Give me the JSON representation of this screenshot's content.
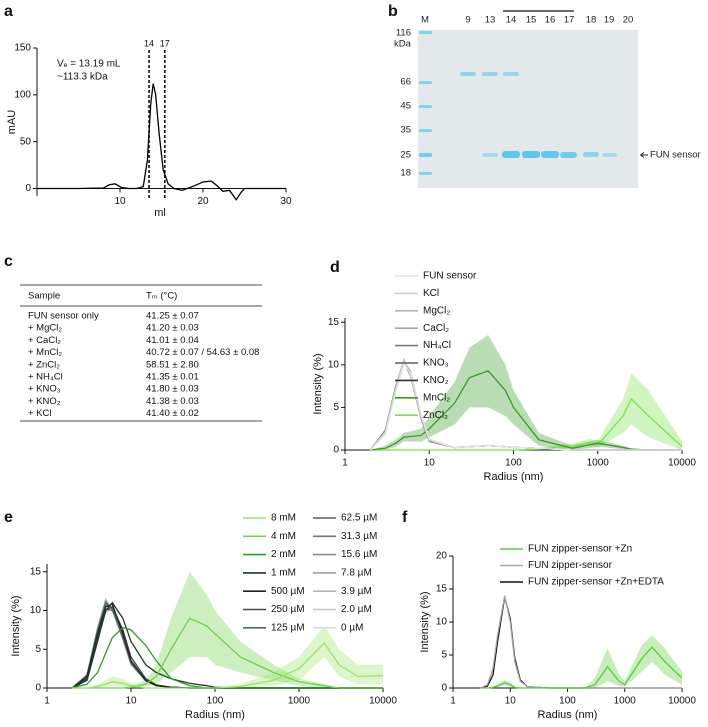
{
  "panel_labels": [
    "a",
    "b",
    "c",
    "d",
    "e",
    "f"
  ],
  "gel": {
    "kda_label": "kDa",
    "lanes": [
      "M",
      "9",
      "13",
      "14",
      "15",
      "16",
      "17",
      "18",
      "19",
      "20"
    ],
    "markers": [
      "116",
      "66",
      "45",
      "35",
      "25",
      "18"
    ],
    "band_label": "FUN sensor"
  },
  "table": {
    "header": [
      "Sample",
      "Tₘ (°C)"
    ],
    "rows": [
      [
        "FUN sensor only",
        "41.25 ± 0.07"
      ],
      [
        "+ MgCl₂",
        "41.20 ± 0.03"
      ],
      [
        "+ CaCl₂",
        "41.01 ± 0.04"
      ],
      [
        "+ MnCl₂",
        "40.72 ± 0.07 / 54.63 ± 0.08"
      ],
      [
        "+ ZnCl₂",
        "58.51 ± 2.80"
      ],
      [
        "+ NH₄Cl",
        "41.35 ± 0.01"
      ],
      [
        "+ KNO₃",
        "41.80 ± 0.03"
      ],
      [
        "+ KNO₂",
        "41.38 ± 0.03"
      ],
      [
        "+ KCl",
        "41.40 ± 0.02"
      ]
    ]
  },
  "chart_data": [
    {
      "type": "line",
      "x_label": "ml",
      "y_label": "mAU",
      "xlim": [
        0,
        30
      ],
      "xticks": [
        10,
        20,
        30
      ],
      "ylim": [
        -8,
        150
      ],
      "yticks": [
        0,
        50,
        100,
        150
      ],
      "annotations": [
        "Vₑ = 13.19 mL",
        "~113.3 kDa"
      ],
      "markers": [
        {
          "value": 13.5,
          "label": "14"
        },
        {
          "value": 15.4,
          "label": "17"
        }
      ],
      "x": [
        0,
        5,
        8,
        8.7,
        9.4,
        10.2,
        11,
        12,
        12.8,
        13.3,
        13.7,
        14,
        14.3,
        14.7,
        15.2,
        15.8,
        16.5,
        17.5,
        19,
        20,
        21,
        21.7,
        22.4,
        23.2,
        24,
        24.6,
        25,
        26,
        30
      ],
      "series": [
        {
          "color": "#000000",
          "values": [
            0,
            0,
            0.5,
            4,
            5,
            1,
            0,
            0,
            2,
            30,
            90,
            112,
            100,
            60,
            20,
            5,
            0,
            -2,
            3,
            7,
            8,
            3,
            -3,
            -2,
            -12,
            -4,
            0,
            0,
            0
          ]
        }
      ]
    },
    {
      "type": "line",
      "log_x": true,
      "x_label": "Radius (nm)",
      "y_label": "Intensity (%)",
      "xlim": [
        1,
        10000
      ],
      "xticks": [
        1,
        10,
        100,
        1000,
        10000
      ],
      "ylim": [
        0,
        15.5
      ],
      "yticks": [
        0,
        5,
        10,
        15
      ],
      "legend_columns": 1,
      "x": [
        2,
        3,
        4,
        5,
        6,
        8,
        10,
        20,
        30,
        50,
        80,
        100,
        200,
        500,
        800,
        1000,
        2000,
        2500,
        4000,
        10000
      ],
      "series": [
        {
          "name": "FUN sensor",
          "color": "#e4e4e4",
          "values": [
            0,
            1.8,
            6.8,
            10.1,
            9.1,
            4.2,
            1.3,
            0.3,
            0.4,
            0.5,
            0.4,
            0.3,
            0.2,
            0,
            0,
            0,
            0,
            0,
            0,
            0
          ]
        },
        {
          "name": "KCl",
          "color": "#cfcfcf",
          "values": [
            0,
            2.1,
            7.2,
            10.5,
            8.8,
            3.9,
            1.1,
            0.3,
            0.4,
            0.5,
            0.4,
            0.3,
            0.2,
            0,
            0,
            0,
            0,
            0,
            0,
            0
          ]
        },
        {
          "name": "MgCl₂",
          "color": "#b5b5b5",
          "values": [
            0,
            1.9,
            7,
            10.2,
            9,
            4.1,
            1.2,
            0.3,
            0.4,
            0.5,
            0.4,
            0.3,
            0.2,
            0,
            0,
            0,
            0,
            0,
            0,
            0
          ]
        },
        {
          "name": "CaCl₂",
          "color": "#9aa5a5",
          "values": [
            0,
            2.2,
            7.4,
            10.6,
            8.9,
            3.8,
            1.1,
            0.3,
            0.4,
            0.5,
            0.4,
            0.3,
            0.2,
            0,
            0,
            0,
            0,
            0,
            0,
            0
          ]
        },
        {
          "name": "NH₄Cl",
          "color": "#7f7f7f",
          "values": [
            0,
            2,
            7.1,
            10.3,
            9.2,
            4,
            1.2,
            0.3,
            0.4,
            0.5,
            0.4,
            0.3,
            0.2,
            0,
            0,
            0,
            0,
            0,
            0,
            0
          ]
        },
        {
          "name": "KNO₃",
          "color": "#5e5e5e",
          "values": [
            0,
            2.3,
            7.5,
            10.4,
            8.7,
            3.7,
            1,
            0.3,
            0.4,
            0.5,
            0.4,
            0.3,
            0.2,
            0,
            0,
            0,
            0,
            0,
            0,
            0
          ]
        },
        {
          "name": "KNO₂",
          "color": "#333333",
          "values": [
            0,
            2.1,
            7.3,
            10.5,
            9,
            4,
            1.1,
            0.3,
            0.4,
            0.5,
            0.4,
            0.3,
            0.2,
            0,
            0,
            0,
            0,
            0,
            0,
            0
          ]
        },
        {
          "name": "MnCl₂",
          "color": "#3a9a2a",
          "values": [
            0,
            0.2,
            0.8,
            1.5,
            1.6,
            1.7,
            2.5,
            5.5,
            8.5,
            9.3,
            7,
            5,
            1.2,
            0.2,
            0.6,
            0.8,
            0.3,
            0.1,
            0,
            0
          ],
          "upper": [
            0,
            0.5,
            1.2,
            2,
            2.2,
            2.5,
            4,
            8,
            12,
            13.5,
            10,
            7,
            2,
            0.5,
            1,
            1.2,
            0.5,
            0.2,
            0,
            0
          ],
          "lower": [
            0,
            0,
            0.4,
            1,
            1,
            1,
            1.5,
            3,
            5,
            5,
            4,
            3,
            0.5,
            0,
            0.2,
            0.4,
            0.1,
            0,
            0,
            0
          ]
        },
        {
          "name": "ZnCl₂",
          "color": "#7ee04a",
          "values": [
            0,
            0,
            0,
            0,
            0,
            0,
            0,
            0,
            0,
            0,
            0,
            0,
            0.1,
            0.5,
            0.9,
            0.6,
            4,
            6,
            4,
            0.4
          ],
          "upper": [
            0,
            0,
            0,
            0,
            0,
            0,
            0,
            0,
            0,
            0,
            0,
            0,
            0.2,
            0.8,
            1.3,
            1,
            6,
            9,
            7,
            1
          ],
          "lower": [
            0,
            0,
            0,
            0,
            0,
            0,
            0,
            0,
            0,
            0,
            0,
            0,
            0,
            0.3,
            0.5,
            0.3,
            2,
            3,
            1.5,
            0
          ]
        }
      ]
    },
    {
      "type": "line",
      "log_x": true,
      "x_label": "Radius (nm)",
      "y_label": "Intensity (%)",
      "xlim": [
        1,
        10000
      ],
      "xticks": [
        1,
        10,
        100,
        1000,
        10000
      ],
      "ylim": [
        0,
        16
      ],
      "yticks": [
        0,
        5,
        10,
        15
      ],
      "legend_columns": 2,
      "x": [
        2,
        3,
        4,
        5,
        6,
        8,
        10,
        15,
        20,
        30,
        50,
        80,
        100,
        200,
        500,
        1000,
        2000,
        3000,
        5000,
        10000
      ],
      "series": [
        {
          "name": "8 mM",
          "color": "#9be36a",
          "values": [
            0,
            0,
            0.2,
            0.5,
            0.8,
            0.6,
            0.3,
            0,
            0,
            0,
            0,
            0,
            0,
            0.2,
            1,
            2.5,
            5.8,
            3,
            1.5,
            1.6
          ],
          "upper": [
            0,
            0,
            0.5,
            1,
            1.5,
            1.2,
            0.6,
            0,
            0,
            0,
            0,
            0,
            0,
            0.5,
            2,
            4,
            8,
            5,
            3,
            3
          ],
          "lower": [
            0,
            0,
            0,
            0.2,
            0.3,
            0.2,
            0,
            0,
            0,
            0,
            0,
            0,
            0,
            0,
            0.3,
            1,
            4,
            1.5,
            0.5,
            0.5
          ]
        },
        {
          "name": "4 mM",
          "color": "#6fd24a",
          "values": [
            0,
            0,
            0,
            0,
            0,
            0,
            0.1,
            0.5,
            1.5,
            5,
            9,
            8,
            7,
            4,
            2,
            0.8,
            0.3,
            0,
            0,
            0
          ],
          "upper": [
            0,
            0,
            0,
            0,
            0,
            0,
            0.3,
            1,
            3,
            9,
            15,
            12,
            10,
            6,
            3,
            1.2,
            0.5,
            0,
            0,
            0
          ],
          "lower": [
            0,
            0,
            0,
            0,
            0,
            0,
            0,
            0.2,
            0.5,
            2,
            4,
            4,
            3,
            2,
            1,
            0.3,
            0,
            0,
            0,
            0
          ]
        },
        {
          "name": "2 mM",
          "color": "#2e9a2e",
          "values": [
            0,
            0.5,
            2,
            4.5,
            6.5,
            7.8,
            7.5,
            5.5,
            3.5,
            1.2,
            0.3,
            0,
            0,
            0,
            0,
            0,
            0,
            0,
            0,
            0
          ]
        },
        {
          "name": "1 mM",
          "color": "#1d3d1d",
          "values": [
            0,
            1,
            6,
            10,
            11,
            9,
            6,
            3,
            2,
            1.2,
            0.6,
            0.3,
            0.1,
            0,
            0,
            0,
            0,
            0,
            0,
            0
          ]
        },
        {
          "name": "500 µM",
          "color": "#222222",
          "values": [
            0,
            1.5,
            7,
            10.5,
            10.8,
            7,
            3.5,
            1,
            0.3,
            0.1,
            0,
            0,
            0,
            0,
            0,
            0,
            0,
            0,
            0,
            0
          ]
        },
        {
          "name": "250 µM",
          "color": "#444444",
          "values": [
            0,
            1.2,
            6.5,
            10,
            10.5,
            7.5,
            4,
            1.2,
            0.4,
            0.1,
            0,
            0,
            0,
            0,
            0,
            0,
            0,
            0,
            0,
            0
          ]
        },
        {
          "name": "125 µM",
          "color": "#4d6b63",
          "values": [
            0,
            1.6,
            7.5,
            11,
            10.2,
            6.5,
            3.2,
            0.9,
            0.3,
            0.1,
            0,
            0,
            0,
            0,
            0,
            0,
            0,
            0,
            0,
            0
          ]
        },
        {
          "name": "62.5 µM",
          "color": "#5c5c5c",
          "values": [
            0,
            1.4,
            7,
            10.6,
            10.4,
            7,
            3.4,
            1,
            0.3,
            0.1,
            0,
            0,
            0,
            0,
            0,
            0,
            0,
            0,
            0,
            0
          ]
        },
        {
          "name": "31.3 µM",
          "color": "#747474",
          "values": [
            0,
            1.3,
            6.8,
            10.2,
            10,
            6.8,
            3.3,
            1,
            0.3,
            0.1,
            0,
            0,
            0,
            0,
            0,
            0,
            0,
            0,
            0,
            0
          ]
        },
        {
          "name": "15.6 µM",
          "color": "#8a8a8a",
          "values": [
            0,
            1.7,
            7.6,
            11.2,
            10.1,
            6.4,
            3.1,
            0.9,
            0.3,
            0.1,
            0,
            0,
            0,
            0,
            0,
            0,
            0,
            0,
            0,
            0
          ]
        },
        {
          "name": "7.8 µM",
          "color": "#a0a0a0",
          "values": [
            0,
            1.5,
            7.2,
            10.8,
            10.3,
            6.7,
            3.3,
            1,
            0.3,
            0.1,
            0,
            0,
            0,
            0,
            0,
            0,
            0,
            0,
            0,
            0
          ]
        },
        {
          "name": "3.9 µM",
          "color": "#b4b4b4",
          "values": [
            0,
            1.2,
            6.4,
            9.8,
            10.2,
            7.2,
            3.6,
            1.1,
            0.3,
            0.1,
            0,
            0,
            0,
            0,
            0,
            0,
            0,
            0,
            0,
            0
          ]
        },
        {
          "name": "2.0 µM",
          "color": "#c8c8c8",
          "values": [
            0,
            1.8,
            7.8,
            11.5,
            10,
            6.2,
            3,
            0.9,
            0.3,
            0.1,
            0,
            0,
            0,
            0,
            0,
            0,
            0,
            0,
            0,
            0
          ]
        },
        {
          "name": "0 µM",
          "color": "#dcdcdc",
          "values": [
            0,
            1.4,
            6.9,
            10.4,
            9.9,
            6.9,
            3.4,
            1.1,
            0.4,
            0.1,
            0,
            0,
            0,
            0,
            0,
            0,
            0,
            0,
            0,
            0
          ]
        }
      ]
    },
    {
      "type": "line",
      "log_x": true,
      "x_label": "Radius (nm)",
      "y_label": "Intensity (%)",
      "xlim": [
        1,
        10000
      ],
      "xticks": [
        1,
        10,
        100,
        1000,
        10000
      ],
      "ylim": [
        0,
        20
      ],
      "yticks": [
        0,
        5,
        10,
        15,
        20
      ],
      "legend_columns": 1,
      "x": [
        3,
        4,
        5,
        6,
        8,
        10,
        12,
        15,
        20,
        50,
        100,
        200,
        300,
        500,
        800,
        1000,
        2000,
        3000,
        5000,
        10000
      ],
      "series": [
        {
          "name": "FUN zipper-sensor +Zn",
          "color": "#5ccc3a",
          "values": [
            0,
            0,
            0.1,
            0.3,
            0.8,
            0.5,
            0.1,
            0,
            0,
            0,
            0,
            0,
            0.5,
            3.2,
            1,
            0.5,
            4.5,
            6.2,
            4,
            1.5
          ],
          "upper": [
            0,
            0,
            0.2,
            0.6,
            1.2,
            0.8,
            0.2,
            0,
            0,
            0,
            0,
            0,
            1.5,
            6,
            2,
            1,
            6.5,
            8,
            6,
            2.5
          ],
          "lower": [
            0,
            0,
            0,
            0.1,
            0.4,
            0.2,
            0,
            0,
            0,
            0,
            0,
            0,
            0,
            1,
            0.3,
            0.2,
            2.5,
            4,
            2,
            0.5
          ]
        },
        {
          "name": "FUN zipper-sensor",
          "color": "#a8a8a8",
          "values": [
            0,
            0.5,
            3,
            8,
            14,
            10,
            4,
            1,
            0.2,
            0,
            0,
            0,
            0,
            0,
            0,
            0,
            0,
            0,
            0,
            0
          ]
        },
        {
          "name": "FUN zipper-sensor +Zn+EDTA",
          "color": "#111111",
          "values": [
            0,
            0.3,
            2,
            7,
            13.8,
            10.5,
            4.5,
            1.2,
            0.2,
            0,
            0,
            0,
            0,
            0,
            0,
            0,
            0,
            0,
            0,
            0
          ]
        }
      ]
    }
  ]
}
